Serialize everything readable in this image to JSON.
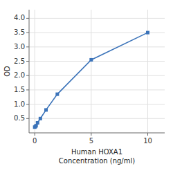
{
  "chart_data": {
    "type": "line",
    "x": [
      0,
      0.0625,
      0.125,
      0.25,
      0.5,
      1,
      2,
      5,
      10
    ],
    "values": [
      0.2,
      0.22,
      0.25,
      0.35,
      0.5,
      0.8,
      1.35,
      2.55,
      3.5
    ],
    "xlabel": "Human HOXA1\nConcentration (ng/ml)",
    "ylabel": "OD",
    "xlim": [
      -0.5,
      11.5
    ],
    "ylim": [
      0.0,
      4.3
    ],
    "xticks": [
      0,
      5,
      10
    ],
    "yticks": [
      0.5,
      {
        "value": 1.0,
        "label": "1.0"
      },
      1.5,
      {
        "value": 2.0,
        "label": "2.0"
      },
      2.5,
      {
        "value": 3.0,
        "label": "3.0"
      },
      3.5,
      {
        "value": 4.0,
        "label": "4.0"
      }
    ],
    "marker": "square",
    "line_style": "solid",
    "grid": true
  }
}
